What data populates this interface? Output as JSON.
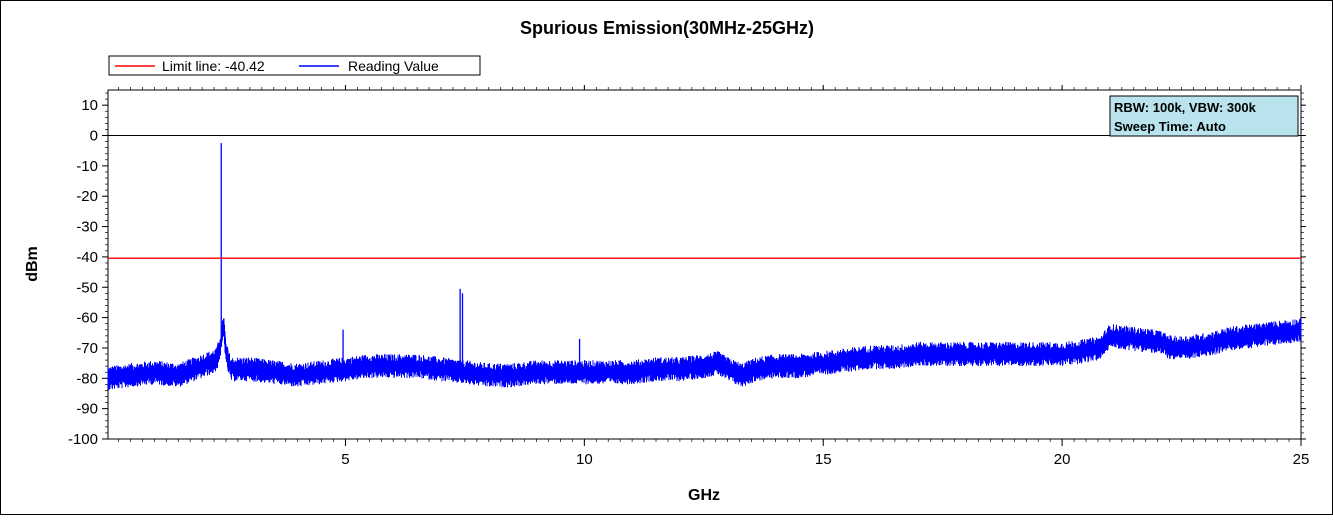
{
  "chart_data": {
    "type": "line",
    "title": "Spurious Emission(30MHz-25GHz)",
    "xlabel": "GHz",
    "ylabel": "dBm",
    "xlim": [
      0.03,
      25
    ],
    "ylim": [
      -100,
      15
    ],
    "x_ticks": [
      5,
      10,
      15,
      20,
      25
    ],
    "y_ticks": [
      10,
      0,
      -10,
      -20,
      -30,
      -40,
      -50,
      -60,
      -70,
      -80,
      -90,
      -100
    ],
    "reference_line": 0,
    "grid": false,
    "legend_position": "top-left",
    "info_box": {
      "line1": "RBW: 100k, VBW: 300k",
      "line2": "Sweep Time: Auto",
      "position": "top-right"
    },
    "series": [
      {
        "name": "Limit line: -40.42",
        "color": "#ff0000",
        "kind": "limit",
        "value": -40.42
      },
      {
        "name": "Reading Value",
        "color": "#0000ff",
        "kind": "trace",
        "x": [
          0.03,
          0.5,
          1.0,
          1.5,
          2.0,
          2.3,
          2.4,
          2.45,
          2.5,
          2.6,
          3.0,
          3.5,
          4.0,
          4.5,
          5.0,
          5.5,
          6.0,
          6.5,
          7.0,
          7.5,
          8.0,
          8.5,
          9.0,
          9.5,
          10.0,
          10.5,
          11.0,
          11.5,
          12.0,
          12.5,
          12.8,
          13.0,
          13.3,
          13.6,
          14.0,
          14.5,
          15.0,
          15.5,
          16.0,
          16.5,
          17.0,
          17.5,
          18.0,
          18.5,
          19.0,
          19.5,
          20.0,
          20.5,
          20.8,
          21.0,
          21.5,
          22.0,
          22.3,
          22.5,
          23.0,
          23.5,
          24.0,
          24.5,
          25.0
        ],
        "y": [
          -80,
          -79,
          -78,
          -79,
          -76,
          -74,
          -68,
          -62,
          -72,
          -77,
          -77,
          -78,
          -79,
          -78,
          -77,
          -76,
          -76,
          -76,
          -77,
          -78,
          -79,
          -79,
          -78,
          -78,
          -78,
          -78,
          -78,
          -77,
          -77,
          -76,
          -75,
          -77,
          -79,
          -77,
          -76,
          -76,
          -75,
          -74,
          -73,
          -73,
          -72,
          -72,
          -72,
          -72,
          -72,
          -72,
          -72,
          -71,
          -70,
          -66,
          -67,
          -68,
          -70,
          -70,
          -69,
          -67,
          -66,
          -65,
          -64
        ],
        "spikes": [
          {
            "x": 2.4,
            "y": -2.5
          },
          {
            "x": 4.95,
            "y": -64
          },
          {
            "x": 7.4,
            "y": -50.5
          },
          {
            "x": 7.45,
            "y": -52
          },
          {
            "x": 9.9,
            "y": -67
          }
        ]
      }
    ]
  }
}
